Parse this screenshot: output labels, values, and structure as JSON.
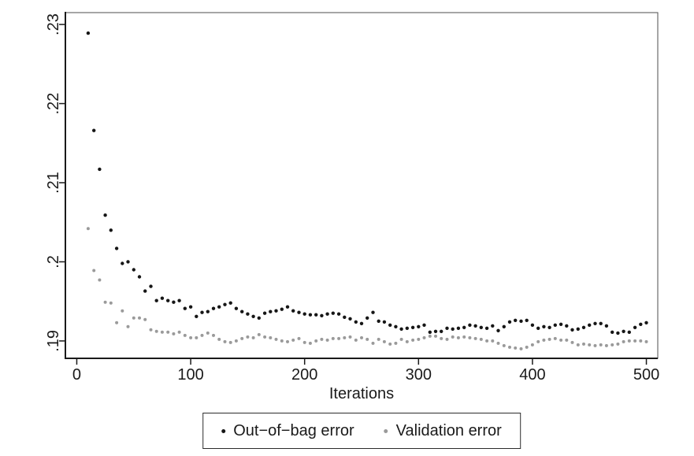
{
  "figure": {
    "background": "#ffffff",
    "frame_color": "#4d4d4d",
    "axis_color": "#1a1a1a",
    "text_color": "#1a1a1a"
  },
  "chart_data": {
    "type": "scatter",
    "xlabel": "Iterations",
    "ylabel": "",
    "xlim": [
      -10,
      510
    ],
    "ylim": [
      0.1878,
      0.2315
    ],
    "grid": false,
    "legend_position": "bottom-center",
    "x_ticks": [
      0,
      100,
      200,
      300,
      400,
      500
    ],
    "x_tick_labels": [
      "0",
      "100",
      "200",
      "300",
      "400",
      "500"
    ],
    "y_ticks": [
      0.19,
      0.2,
      0.21,
      0.22,
      0.23
    ],
    "y_tick_labels": [
      ".19",
      ".2",
      ".21",
      ".22",
      ".23"
    ],
    "x": [
      10,
      15,
      20,
      25,
      30,
      35,
      40,
      45,
      50,
      55,
      60,
      65,
      70,
      75,
      80,
      85,
      90,
      95,
      100,
      105,
      110,
      115,
      120,
      125,
      130,
      135,
      140,
      145,
      150,
      155,
      160,
      165,
      170,
      175,
      180,
      185,
      190,
      195,
      200,
      205,
      210,
      215,
      220,
      225,
      230,
      235,
      240,
      245,
      250,
      255,
      260,
      265,
      270,
      275,
      280,
      285,
      290,
      295,
      300,
      305,
      310,
      315,
      320,
      325,
      330,
      335,
      340,
      345,
      350,
      355,
      360,
      365,
      370,
      375,
      380,
      385,
      390,
      395,
      400,
      405,
      410,
      415,
      420,
      425,
      430,
      435,
      440,
      445,
      450,
      455,
      460,
      465,
      470,
      475,
      480,
      485,
      490,
      495,
      500
    ],
    "series": [
      {
        "name": "Out−of−bag error",
        "color": "#161616",
        "marker": "dot",
        "marker_radius": 2.2,
        "values": [
          0.2289,
          0.2166,
          0.2117,
          0.2059,
          0.204,
          0.2017,
          0.1998,
          0.2,
          0.199,
          0.1981,
          0.1963,
          0.1969,
          0.1951,
          0.1954,
          0.1951,
          0.1949,
          0.1951,
          0.1941,
          0.1943,
          0.1931,
          0.1936,
          0.1937,
          0.1941,
          0.1943,
          0.1946,
          0.1948,
          0.1941,
          0.1937,
          0.1934,
          0.1931,
          0.1929,
          0.1935,
          0.1937,
          0.1938,
          0.194,
          0.1943,
          0.1938,
          0.1936,
          0.1934,
          0.1933,
          0.1933,
          0.1932,
          0.1934,
          0.1935,
          0.1934,
          0.193,
          0.1928,
          0.1924,
          0.1922,
          0.1929,
          0.1936,
          0.1925,
          0.1924,
          0.192,
          0.1918,
          0.1915,
          0.1916,
          0.1917,
          0.1918,
          0.192,
          0.1911,
          0.1912,
          0.1912,
          0.1916,
          0.1915,
          0.1916,
          0.1917,
          0.192,
          0.1919,
          0.1917,
          0.1916,
          0.1919,
          0.1913,
          0.1918,
          0.1924,
          0.1926,
          0.1925,
          0.1926,
          0.192,
          0.1916,
          0.1918,
          0.1917,
          0.192,
          0.1921,
          0.1919,
          0.1914,
          0.1915,
          0.1917,
          0.192,
          0.1922,
          0.1922,
          0.1919,
          0.1911,
          0.191,
          0.1912,
          0.1911,
          0.1917,
          0.1921,
          0.1923
        ]
      },
      {
        "name": "Validation error",
        "color": "#9a9a9a",
        "marker": "dot",
        "marker_radius": 2.0,
        "values": [
          0.2042,
          0.1989,
          0.1977,
          0.1949,
          0.1948,
          0.1923,
          0.1938,
          0.1918,
          0.1929,
          0.1929,
          0.1927,
          0.1914,
          0.1912,
          0.1911,
          0.1911,
          0.1909,
          0.1911,
          0.1907,
          0.1904,
          0.1904,
          0.1907,
          0.191,
          0.1907,
          0.1902,
          0.1899,
          0.1898,
          0.19,
          0.1903,
          0.1905,
          0.1904,
          0.1908,
          0.1905,
          0.1904,
          0.1902,
          0.19,
          0.1899,
          0.1901,
          0.1903,
          0.1898,
          0.1897,
          0.19,
          0.1902,
          0.1901,
          0.1903,
          0.1903,
          0.1904,
          0.1905,
          0.1901,
          0.1904,
          0.1902,
          0.1897,
          0.1902,
          0.1899,
          0.1896,
          0.1897,
          0.1902,
          0.1899,
          0.1901,
          0.1902,
          0.1904,
          0.1906,
          0.1906,
          0.1903,
          0.1902,
          0.1905,
          0.1904,
          0.1905,
          0.1904,
          0.1903,
          0.1902,
          0.19,
          0.19,
          0.1897,
          0.1894,
          0.1892,
          0.1891,
          0.189,
          0.1892,
          0.1895,
          0.1899,
          0.1901,
          0.1902,
          0.1903,
          0.1901,
          0.1901,
          0.1898,
          0.1895,
          0.1896,
          0.1895,
          0.1894,
          0.1895,
          0.1894,
          0.1895,
          0.1896,
          0.1899,
          0.19,
          0.19,
          0.19,
          0.1899
        ]
      }
    ]
  }
}
